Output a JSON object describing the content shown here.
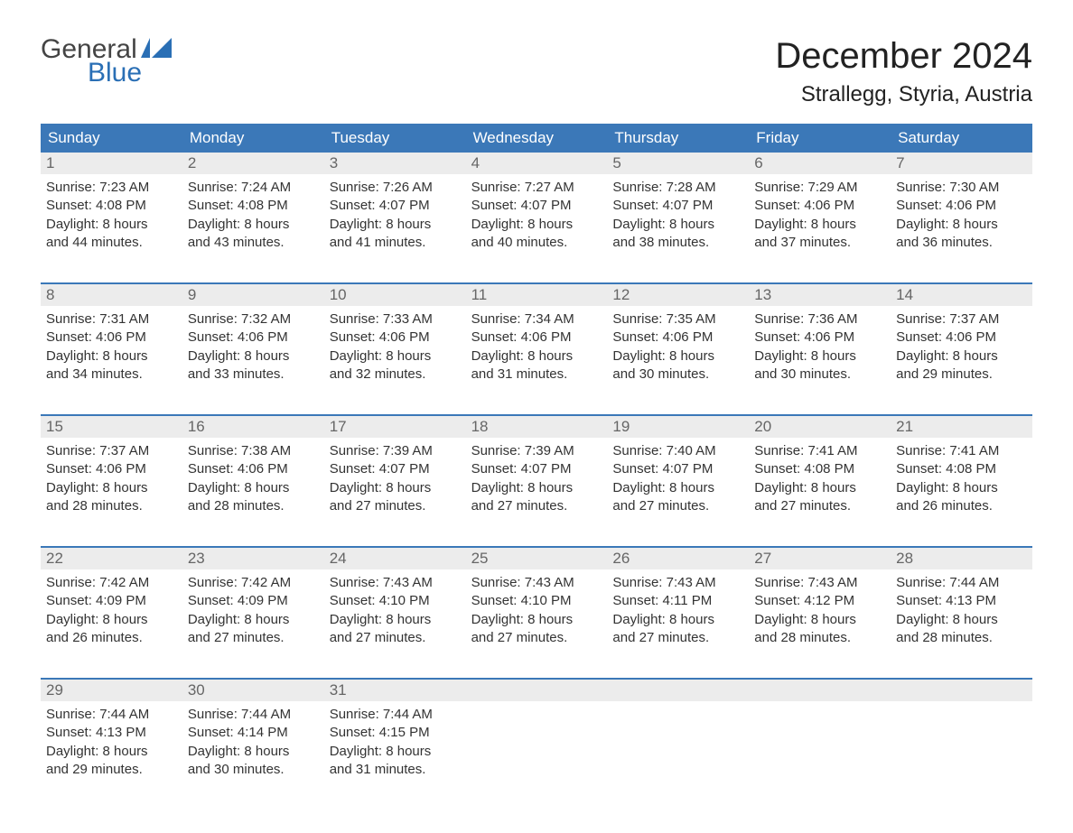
{
  "brand": {
    "general": "General",
    "blue": "Blue"
  },
  "title": "December 2024",
  "location": "Strallegg, Styria, Austria",
  "colors": {
    "header_bg": "#3b78b8",
    "daynum_bg": "#ececec",
    "brand_blue": "#2a6fb5",
    "text": "#333333",
    "background": "#ffffff"
  },
  "dow": [
    "Sunday",
    "Monday",
    "Tuesday",
    "Wednesday",
    "Thursday",
    "Friday",
    "Saturday"
  ],
  "weeks": [
    [
      {
        "n": "1",
        "sr": "7:23 AM",
        "ss": "4:08 PM",
        "dl1": "Daylight: 8 hours",
        "dl2": "and 44 minutes."
      },
      {
        "n": "2",
        "sr": "7:24 AM",
        "ss": "4:08 PM",
        "dl1": "Daylight: 8 hours",
        "dl2": "and 43 minutes."
      },
      {
        "n": "3",
        "sr": "7:26 AM",
        "ss": "4:07 PM",
        "dl1": "Daylight: 8 hours",
        "dl2": "and 41 minutes."
      },
      {
        "n": "4",
        "sr": "7:27 AM",
        "ss": "4:07 PM",
        "dl1": "Daylight: 8 hours",
        "dl2": "and 40 minutes."
      },
      {
        "n": "5",
        "sr": "7:28 AM",
        "ss": "4:07 PM",
        "dl1": "Daylight: 8 hours",
        "dl2": "and 38 minutes."
      },
      {
        "n": "6",
        "sr": "7:29 AM",
        "ss": "4:06 PM",
        "dl1": "Daylight: 8 hours",
        "dl2": "and 37 minutes."
      },
      {
        "n": "7",
        "sr": "7:30 AM",
        "ss": "4:06 PM",
        "dl1": "Daylight: 8 hours",
        "dl2": "and 36 minutes."
      }
    ],
    [
      {
        "n": "8",
        "sr": "7:31 AM",
        "ss": "4:06 PM",
        "dl1": "Daylight: 8 hours",
        "dl2": "and 34 minutes."
      },
      {
        "n": "9",
        "sr": "7:32 AM",
        "ss": "4:06 PM",
        "dl1": "Daylight: 8 hours",
        "dl2": "and 33 minutes."
      },
      {
        "n": "10",
        "sr": "7:33 AM",
        "ss": "4:06 PM",
        "dl1": "Daylight: 8 hours",
        "dl2": "and 32 minutes."
      },
      {
        "n": "11",
        "sr": "7:34 AM",
        "ss": "4:06 PM",
        "dl1": "Daylight: 8 hours",
        "dl2": "and 31 minutes."
      },
      {
        "n": "12",
        "sr": "7:35 AM",
        "ss": "4:06 PM",
        "dl1": "Daylight: 8 hours",
        "dl2": "and 30 minutes."
      },
      {
        "n": "13",
        "sr": "7:36 AM",
        "ss": "4:06 PM",
        "dl1": "Daylight: 8 hours",
        "dl2": "and 30 minutes."
      },
      {
        "n": "14",
        "sr": "7:37 AM",
        "ss": "4:06 PM",
        "dl1": "Daylight: 8 hours",
        "dl2": "and 29 minutes."
      }
    ],
    [
      {
        "n": "15",
        "sr": "7:37 AM",
        "ss": "4:06 PM",
        "dl1": "Daylight: 8 hours",
        "dl2": "and 28 minutes."
      },
      {
        "n": "16",
        "sr": "7:38 AM",
        "ss": "4:06 PM",
        "dl1": "Daylight: 8 hours",
        "dl2": "and 28 minutes."
      },
      {
        "n": "17",
        "sr": "7:39 AM",
        "ss": "4:07 PM",
        "dl1": "Daylight: 8 hours",
        "dl2": "and 27 minutes."
      },
      {
        "n": "18",
        "sr": "7:39 AM",
        "ss": "4:07 PM",
        "dl1": "Daylight: 8 hours",
        "dl2": "and 27 minutes."
      },
      {
        "n": "19",
        "sr": "7:40 AM",
        "ss": "4:07 PM",
        "dl1": "Daylight: 8 hours",
        "dl2": "and 27 minutes."
      },
      {
        "n": "20",
        "sr": "7:41 AM",
        "ss": "4:08 PM",
        "dl1": "Daylight: 8 hours",
        "dl2": "and 27 minutes."
      },
      {
        "n": "21",
        "sr": "7:41 AM",
        "ss": "4:08 PM",
        "dl1": "Daylight: 8 hours",
        "dl2": "and 26 minutes."
      }
    ],
    [
      {
        "n": "22",
        "sr": "7:42 AM",
        "ss": "4:09 PM",
        "dl1": "Daylight: 8 hours",
        "dl2": "and 26 minutes."
      },
      {
        "n": "23",
        "sr": "7:42 AM",
        "ss": "4:09 PM",
        "dl1": "Daylight: 8 hours",
        "dl2": "and 27 minutes."
      },
      {
        "n": "24",
        "sr": "7:43 AM",
        "ss": "4:10 PM",
        "dl1": "Daylight: 8 hours",
        "dl2": "and 27 minutes."
      },
      {
        "n": "25",
        "sr": "7:43 AM",
        "ss": "4:10 PM",
        "dl1": "Daylight: 8 hours",
        "dl2": "and 27 minutes."
      },
      {
        "n": "26",
        "sr": "7:43 AM",
        "ss": "4:11 PM",
        "dl1": "Daylight: 8 hours",
        "dl2": "and 27 minutes."
      },
      {
        "n": "27",
        "sr": "7:43 AM",
        "ss": "4:12 PM",
        "dl1": "Daylight: 8 hours",
        "dl2": "and 28 minutes."
      },
      {
        "n": "28",
        "sr": "7:44 AM",
        "ss": "4:13 PM",
        "dl1": "Daylight: 8 hours",
        "dl2": "and 28 minutes."
      }
    ],
    [
      {
        "n": "29",
        "sr": "7:44 AM",
        "ss": "4:13 PM",
        "dl1": "Daylight: 8 hours",
        "dl2": "and 29 minutes."
      },
      {
        "n": "30",
        "sr": "7:44 AM",
        "ss": "4:14 PM",
        "dl1": "Daylight: 8 hours",
        "dl2": "and 30 minutes."
      },
      {
        "n": "31",
        "sr": "7:44 AM",
        "ss": "4:15 PM",
        "dl1": "Daylight: 8 hours",
        "dl2": "and 31 minutes."
      },
      null,
      null,
      null,
      null
    ]
  ],
  "labels": {
    "sunrise": "Sunrise: ",
    "sunset": "Sunset: "
  }
}
